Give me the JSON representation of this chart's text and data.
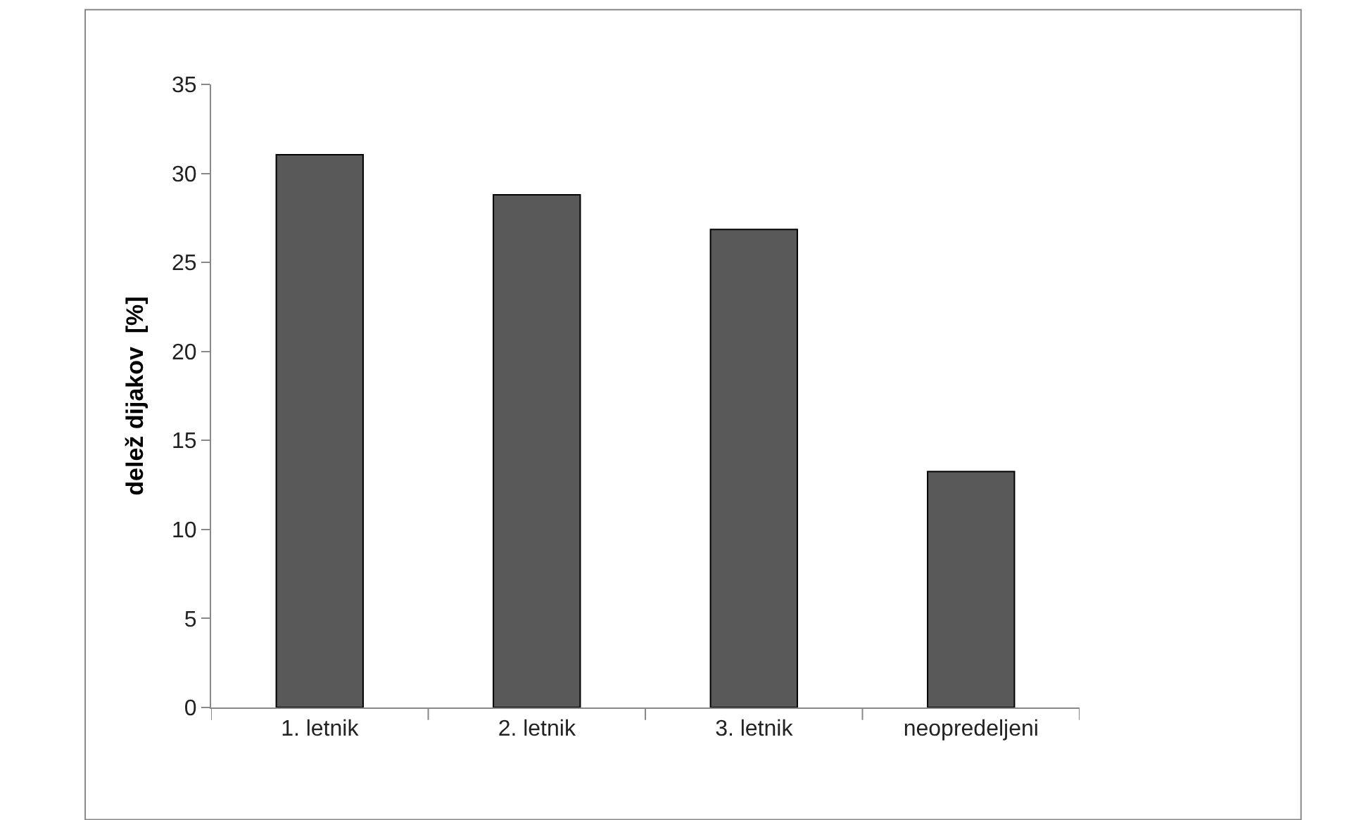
{
  "chart_data": {
    "type": "bar",
    "ylabel": "delež dijakov  [%]",
    "categories": [
      "1. letnik",
      "2. letnik",
      "3. letnik",
      "neopredeljeni"
    ],
    "values": [
      31.05,
      28.8,
      26.85,
      13.25
    ],
    "color": "#595959",
    "ylim": [
      0,
      35
    ],
    "yticks": [
      0,
      5,
      10,
      15,
      20,
      25,
      30,
      35
    ]
  }
}
